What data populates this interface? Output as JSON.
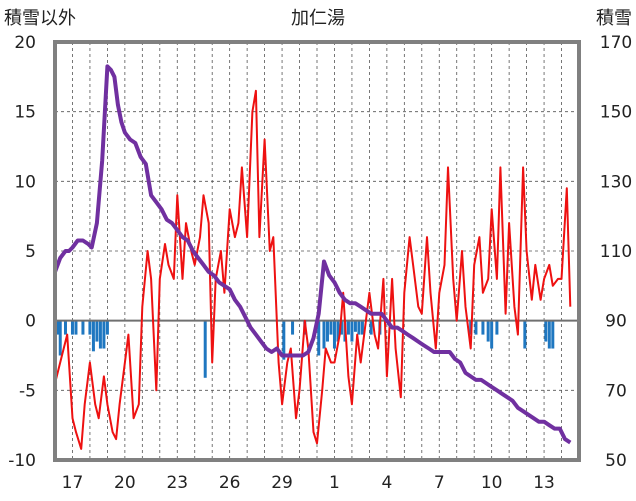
{
  "title": "加仁湯",
  "left_axis_label": "積雪以外",
  "right_axis_label": "積雪",
  "chart_data": {
    "type": "line",
    "title": "加仁湯",
    "left_axis": {
      "label": "積雪以外",
      "range": [
        -10,
        20
      ],
      "ticks": [
        20,
        15,
        10,
        5,
        0,
        -5,
        -10
      ]
    },
    "right_axis": {
      "label": "積雪",
      "range": [
        50,
        170
      ],
      "ticks": [
        170,
        150,
        130,
        110,
        90,
        70,
        50
      ]
    },
    "x_labels": [
      "17",
      "20",
      "23",
      "26",
      "29",
      "1",
      "4",
      "7",
      "10",
      "13"
    ],
    "x_label_positions": [
      1,
      4,
      7,
      10,
      13,
      16,
      19,
      22,
      25,
      28
    ],
    "x_range": [
      0,
      30
    ],
    "grid": "dashed vertical daily lines, dashed horizontal lines every 5",
    "series": [
      {
        "color": "#ee1111",
        "axis": "left",
        "x": [
          0,
          0.3,
          0.5,
          0.7,
          1,
          1.2,
          1.5,
          1.7,
          2,
          2.3,
          2.5,
          2.8,
          3,
          3.3,
          3.5,
          3.7,
          4,
          4.2,
          4.5,
          4.8,
          5,
          5.3,
          5.5,
          5.8,
          6,
          6.3,
          6.5,
          6.8,
          7,
          7.3,
          7.5,
          7.8,
          8,
          8.3,
          8.5,
          8.8,
          9,
          9.2,
          9.5,
          9.7,
          10,
          10.3,
          10.5,
          10.7,
          11,
          11.3,
          11.5,
          11.7,
          12,
          12.3,
          12.5,
          12.8,
          13,
          13.3,
          13.5,
          13.8,
          14,
          14.3,
          14.5,
          14.8,
          15,
          15.3,
          15.5,
          15.8,
          16,
          16.3,
          16.5,
          16.8,
          17,
          17.3,
          17.5,
          17.8,
          18,
          18.3,
          18.5,
          18.8,
          19,
          19.3,
          19.5,
          19.8,
          20,
          20.3,
          20.5,
          20.8,
          21,
          21.3,
          21.5,
          21.8,
          22,
          22.3,
          22.5,
          22.8,
          23,
          23.3,
          23.5,
          23.8,
          24,
          24.3,
          24.5,
          24.8,
          25,
          25.3,
          25.5,
          25.8,
          26,
          26.3,
          26.5,
          26.8,
          27,
          27.3,
          27.5,
          27.8,
          28,
          28.3,
          28.5,
          28.8,
          29,
          29.3,
          29.5
        ],
        "values": [
          -4.5,
          -3,
          -2,
          -1,
          -7,
          -8,
          -9.2,
          -6,
          -3,
          -6,
          -7,
          -4,
          -6,
          -8,
          -8.5,
          -6,
          -3,
          -1,
          -7,
          -6,
          1,
          5,
          3,
          -5,
          3,
          5.5,
          4,
          3,
          9,
          3,
          7,
          5,
          4,
          6,
          9,
          7,
          -3,
          3,
          5,
          2,
          8,
          6,
          7,
          11,
          6,
          15,
          16.5,
          6,
          13,
          5,
          6,
          -3,
          -6,
          -3,
          -2,
          -7,
          -5,
          0,
          -2,
          -8,
          -8.8,
          -5,
          -2,
          -3,
          -3,
          -1,
          2,
          -4,
          -6,
          -1,
          -3,
          0,
          2,
          -1,
          -2,
          3,
          -4,
          3,
          -2,
          -5.5,
          2,
          6,
          4,
          1,
          0.5,
          6,
          2,
          -2,
          2,
          4,
          11,
          3,
          0,
          5,
          1,
          -2,
          4,
          6,
          2,
          3,
          8,
          3,
          11,
          0.5,
          7,
          1,
          -1,
          11,
          5,
          1.5,
          4,
          1.5,
          3,
          4,
          2.5,
          3,
          3,
          9.5,
          1
        ]
      },
      {
        "color": "#7030a0",
        "axis": "right",
        "x": [
          0,
          0.3,
          0.6,
          0.8,
          1,
          1.3,
          1.6,
          1.9,
          2.1,
          2.4,
          2.7,
          3,
          3.2,
          3.4,
          3.6,
          3.8,
          4.0,
          4.3,
          4.6,
          4.9,
          5.2,
          5.5,
          5.8,
          6.1,
          6.4,
          6.7,
          7.0,
          7.3,
          7.6,
          7.9,
          8.2,
          8.5,
          8.8,
          9.1,
          9.4,
          9.7,
          10.0,
          10.3,
          10.6,
          10.9,
          11.2,
          11.5,
          11.8,
          12.1,
          12.4,
          12.7,
          13.0,
          13.3,
          13.6,
          13.9,
          14.2,
          14.5,
          14.8,
          15.1,
          15.4,
          15.7,
          16.0,
          16.3,
          16.6,
          16.9,
          17.2,
          17.5,
          17.8,
          18.1,
          18.4,
          18.7,
          19.0,
          19.3,
          19.6,
          19.9,
          20.2,
          20.5,
          20.8,
          21.1,
          21.4,
          21.7,
          22.0,
          22.3,
          22.6,
          22.9,
          23.2,
          23.5,
          23.8,
          24.1,
          24.4,
          24.7,
          25.0,
          25.3,
          25.6,
          25.9,
          26.2,
          26.5,
          26.8,
          27.1,
          27.4,
          27.7,
          28.0,
          28.3,
          28.6,
          28.9,
          29.2,
          29.5
        ],
        "values": [
          104,
          108,
          110,
          110,
          111,
          113,
          113,
          112,
          111,
          118,
          136,
          163,
          162,
          160,
          152,
          147,
          144,
          142,
          141,
          137,
          135,
          126,
          124,
          122,
          119,
          118,
          116,
          114,
          113,
          110,
          108,
          106,
          104,
          103,
          101,
          100,
          99,
          96,
          94,
          91,
          88,
          86,
          84,
          82,
          81,
          82,
          80,
          80,
          80,
          80,
          80,
          81,
          85,
          92,
          107,
          103,
          101,
          98,
          96,
          95,
          95,
          94,
          93,
          92,
          92,
          92,
          90,
          88,
          88,
          87,
          86,
          85,
          84,
          83,
          82,
          81,
          81,
          81,
          81,
          79,
          78,
          75,
          74,
          73,
          73,
          72,
          71,
          70,
          69,
          68,
          67,
          65,
          64,
          63,
          62,
          61,
          61,
          60,
          59,
          59,
          56,
          55
        ]
      }
    ],
    "bars": {
      "color": "#1f77c0",
      "axis": "left",
      "x": [
        0.2,
        0.3,
        0.6,
        1.0,
        1.2,
        1.6,
        2.0,
        2.2,
        2.4,
        2.6,
        2.8,
        3.0,
        8.6,
        13.1,
        13.6,
        14.3,
        15.1,
        15.4,
        15.6,
        15.8,
        16.0,
        16.2,
        16.4,
        16.6,
        16.8,
        17.0,
        17.2,
        17.4,
        17.6,
        18.1,
        18.6,
        23.8,
        24.1,
        24.5,
        24.8,
        25.0,
        25.3,
        26.9,
        28.1,
        28.3,
        28.5
      ],
      "values": [
        -1,
        -2.5,
        -1,
        -1,
        -1,
        -1,
        -1,
        -2.2,
        -1.5,
        -2,
        -2,
        -1,
        -4.1,
        -2.8,
        -1,
        -1,
        -2.5,
        -2,
        -1.5,
        -1,
        -2,
        -1.5,
        -1,
        -1.5,
        -1,
        -1.5,
        -0.8,
        -1,
        -1,
        -1,
        -1,
        -1,
        -1,
        -1,
        -1.5,
        -2,
        -1,
        -2,
        -1.5,
        -2,
        -2
      ]
    }
  }
}
